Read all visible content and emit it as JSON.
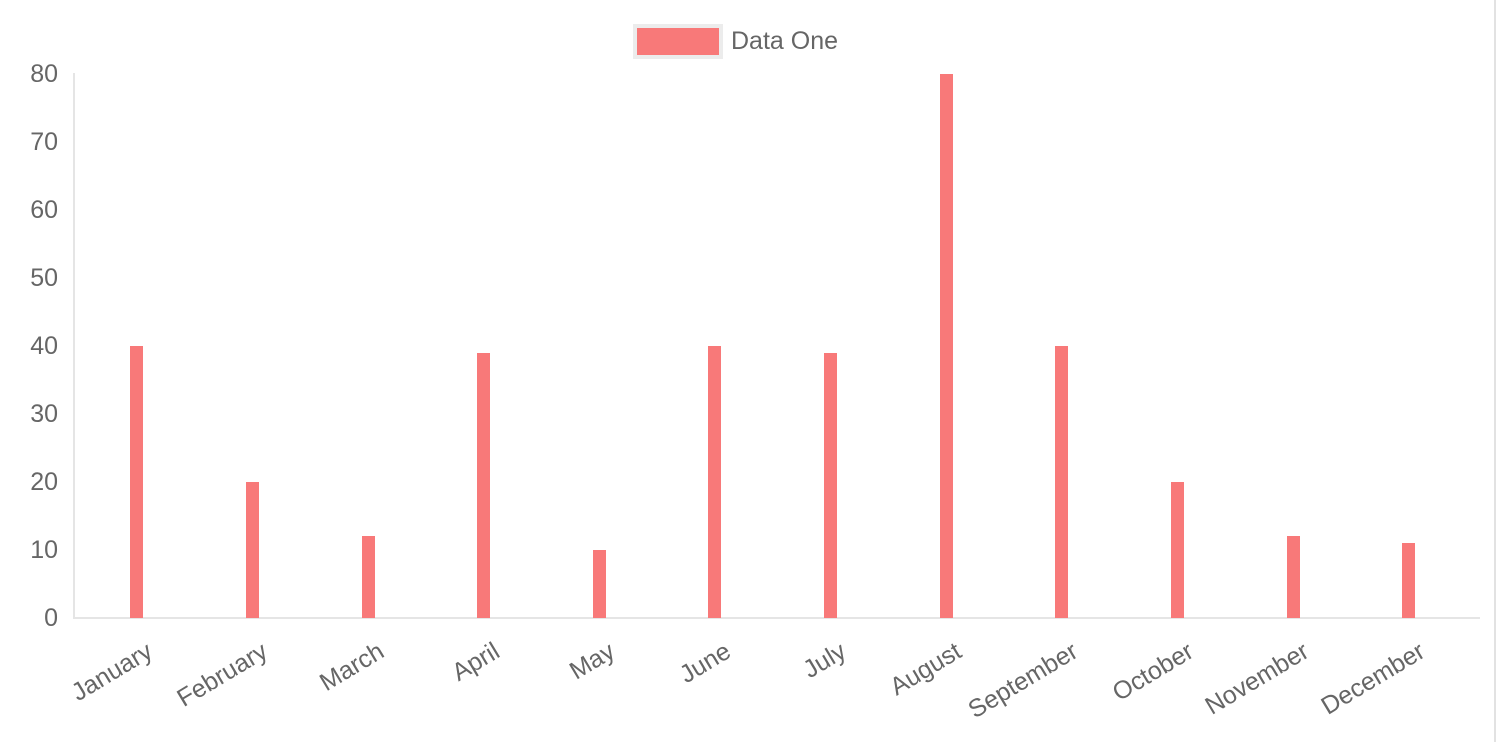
{
  "chart_data": {
    "type": "bar",
    "title": "",
    "categories": [
      "January",
      "February",
      "March",
      "April",
      "May",
      "June",
      "July",
      "August",
      "September",
      "October",
      "November",
      "December"
    ],
    "series": [
      {
        "name": "Data One",
        "color": "#f87979",
        "values": [
          40,
          20,
          12,
          39,
          10,
          40,
          39,
          80,
          40,
          20,
          12,
          11
        ]
      }
    ],
    "xlabel": "",
    "ylabel": "",
    "ylim": [
      0,
      80
    ],
    "y_tick_step": 10,
    "y_tick_labels": [
      "0",
      "10",
      "20",
      "30",
      "40",
      "50",
      "60",
      "70",
      "80"
    ],
    "grid": "off",
    "legend_position": "top",
    "axis_line_color": "#e5e5e5",
    "tick_label_color": "#666666",
    "page_border_color": "#e2e2e2"
  }
}
